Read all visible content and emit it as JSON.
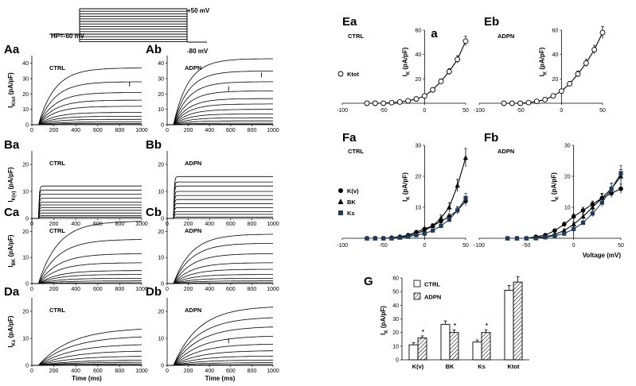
{
  "protocol": {
    "hp_label": "HP=-60 mV",
    "top_label": "+50 mV",
    "bottom_label": "-80 mV"
  },
  "trace_panels": [
    {
      "id": "Aa",
      "tag": "Aa",
      "condition": "CTRL",
      "ylabel": "I_Ktot (pA/pF)",
      "yticks": [
        "0",
        "10",
        "20",
        "30",
        "40"
      ],
      "ymax": 45,
      "amplitudes": [
        0.2,
        0.8,
        1.8,
        3.5,
        5.5,
        8,
        12,
        16,
        21,
        28,
        37
      ],
      "tau": 150,
      "artifacts": [
        [
          890,
          28
        ]
      ]
    },
    {
      "id": "Ab",
      "tag": "Ab",
      "condition": "ADPN",
      "ylabel": "",
      "yticks": [
        "0",
        "10",
        "20",
        "30",
        "40"
      ],
      "ymax": 45,
      "amplitudes": [
        0.3,
        1,
        2.5,
        4.5,
        7,
        10,
        13.5,
        17,
        22,
        28,
        35,
        43
      ],
      "tau": 140,
      "artifacts": [
        [
          580,
          25
        ],
        [
          890,
          34
        ]
      ]
    },
    {
      "id": "Ba",
      "tag": "Ba",
      "condition": "CTRL",
      "ylabel": "I_K(v) (pA/pF)",
      "yticks": [
        "0",
        "10",
        "20"
      ],
      "ymax": 25,
      "amplitudes": [
        0.5,
        1,
        2,
        3,
        4,
        5,
        6,
        7.5,
        9,
        10.5,
        12
      ],
      "tau": 6,
      "artifacts": []
    },
    {
      "id": "Bb",
      "tag": "Bb",
      "condition": "ADPN",
      "ylabel": "",
      "yticks": [
        "0",
        "10",
        "20"
      ],
      "ymax": 25,
      "amplitudes": [
        0.5,
        1.5,
        2.5,
        4,
        5.5,
        7,
        8.5,
        10,
        12,
        13.5,
        15.5
      ],
      "tau": 6,
      "artifacts": []
    },
    {
      "id": "Ca",
      "tag": "Ca",
      "condition": "CTRL",
      "ylabel": "I_BK (pA/pF)",
      "yticks": [
        "0",
        "10",
        "20"
      ],
      "ymax": 25,
      "amplitudes": [
        0.3,
        1,
        2,
        3.5,
        5,
        8,
        11.5,
        17,
        24
      ],
      "tau": 180,
      "artifacts": []
    },
    {
      "id": "Cb",
      "tag": "Cb",
      "condition": "ADPN",
      "ylabel": "",
      "yticks": [
        "0",
        "10",
        "20"
      ],
      "ymax": 25,
      "amplitudes": [
        0.3,
        1,
        2,
        3.5,
        5.5,
        8,
        11.5,
        15.5,
        19
      ],
      "tau": 170,
      "artifacts": []
    },
    {
      "id": "Da",
      "tag": "Da",
      "condition": "CTRL",
      "ylabel": "I_Ks (pA/pF)",
      "yticks": [
        "0",
        "10",
        "20"
      ],
      "ymax": 25,
      "amplitudes": [
        0.2,
        0.6,
        1.2,
        2,
        3.5,
        5.5,
        8,
        11,
        14
      ],
      "tau": 300,
      "artifacts": []
    },
    {
      "id": "Db",
      "tag": "Db",
      "condition": "ADPN",
      "ylabel": "",
      "yticks": [
        "0",
        "10",
        "20"
      ],
      "ymax": 25,
      "amplitudes": [
        0.3,
        1,
        2,
        3.5,
        5.5,
        8,
        11,
        14.5,
        18,
        22
      ],
      "tau": 240,
      "artifacts": [
        [
          580,
          10
        ]
      ]
    }
  ],
  "trace_axes": {
    "xticks": [
      "0",
      "200",
      "400",
      "600",
      "800",
      "1000"
    ],
    "xlabel": "Time (ms)"
  },
  "iv_panels": [
    {
      "id": "Ea",
      "tag": "Ea",
      "condition": "CTRL",
      "sublabel": "a",
      "ylabel": "I_K (pA/pF)",
      "xlim": [
        -100,
        50
      ],
      "ylim": [
        0,
        60
      ],
      "yticks": [
        "20",
        "40",
        "60"
      ],
      "xticks": [
        "-100",
        "-50",
        "0",
        "50"
      ],
      "legend": [
        "Ktot"
      ],
      "series": [
        {
          "name": "Ktot",
          "marker": "circle-open",
          "color": "#000000",
          "x": [
            -70,
            -60,
            -50,
            -40,
            -30,
            -20,
            -10,
            0,
            10,
            20,
            30,
            40,
            50
          ],
          "y": [
            0,
            0,
            0,
            0.5,
            1,
            2,
            3.5,
            6,
            11,
            18,
            26,
            36,
            51
          ],
          "err": [
            0.3,
            0.3,
            0.3,
            0.3,
            0.5,
            0.6,
            0.8,
            1,
            1.5,
            2,
            2.5,
            3,
            4
          ]
        }
      ]
    },
    {
      "id": "Eb",
      "tag": "Eb",
      "condition": "ADPN",
      "sublabel": "",
      "ylabel": "I_K (pA/pF)",
      "xlim": [
        -100,
        50
      ],
      "ylim": [
        0,
        60
      ],
      "yticks": [
        "20",
        "40",
        "60"
      ],
      "xticks": [
        "-100",
        "-50",
        "0",
        "50"
      ],
      "legend": [],
      "series": [
        {
          "name": "Ktot",
          "marker": "circle-open",
          "color": "#000000",
          "x": [
            -70,
            -60,
            -50,
            -40,
            -30,
            -20,
            -10,
            0,
            10,
            20,
            30,
            40,
            50
          ],
          "y": [
            0,
            0,
            0,
            0.5,
            1.5,
            3,
            6,
            10,
            16,
            24,
            33,
            44,
            58
          ],
          "err": [
            0.3,
            0.3,
            0.3,
            0.5,
            0.6,
            0.8,
            1,
            1.5,
            2,
            2.5,
            3,
            3.5,
            5
          ]
        }
      ]
    },
    {
      "id": "Fa",
      "tag": "Fa",
      "condition": "CTRL",
      "sublabel": "",
      "ylabel": "I_K (pA/pF)",
      "xlim": [
        -100,
        50
      ],
      "ylim": [
        0,
        30
      ],
      "yticks": [
        "10",
        "20",
        "30"
      ],
      "xticks": [
        "-100",
        "-50",
        "0",
        "50"
      ],
      "legend": [
        "K(v)",
        "BK",
        "Ks"
      ],
      "series": [
        {
          "name": "K(v)",
          "marker": "circle-filled",
          "color": "#000000",
          "x": [
            -70,
            -60,
            -50,
            -40,
            -30,
            -20,
            -10,
            0,
            10,
            20,
            30,
            40,
            50
          ],
          "y": [
            0,
            0,
            0,
            0.2,
            0.5,
            1,
            2,
            3,
            4,
            5.5,
            7,
            9,
            12
          ],
          "err": [
            0.2,
            0.2,
            0.2,
            0.2,
            0.3,
            0.3,
            0.4,
            0.5,
            0.6,
            0.8,
            1,
            1.2,
            1.5
          ]
        },
        {
          "name": "BK",
          "marker": "triangle",
          "color": "#000000",
          "x": [
            -70,
            -60,
            -50,
            -40,
            -30,
            -20,
            -10,
            0,
            10,
            20,
            30,
            40,
            50
          ],
          "y": [
            0,
            0,
            0,
            0,
            0.3,
            0.8,
            1.5,
            2.5,
            4,
            6.5,
            10,
            17,
            26
          ],
          "err": [
            0.2,
            0.2,
            0.2,
            0.2,
            0.3,
            0.3,
            0.4,
            0.5,
            0.7,
            1,
            1.5,
            2,
            3
          ]
        },
        {
          "name": "Ks",
          "marker": "square",
          "color": "#1f3a5a",
          "x": [
            -70,
            -60,
            -50,
            -40,
            -30,
            -20,
            -10,
            0,
            10,
            20,
            30,
            40,
            50
          ],
          "y": [
            0,
            0,
            0,
            0,
            0.2,
            0.5,
            1,
            1.5,
            2.5,
            4,
            6,
            9,
            13
          ],
          "err": [
            0.2,
            0.2,
            0.2,
            0.2,
            0.2,
            0.3,
            0.3,
            0.4,
            0.5,
            0.6,
            0.8,
            1,
            1.5
          ]
        }
      ]
    },
    {
      "id": "Fb",
      "tag": "Fb",
      "condition": "ADPN",
      "sublabel": "",
      "ylabel": "I_K (pA/pF)",
      "xlim": [
        -100,
        50
      ],
      "ylim": [
        0,
        30
      ],
      "yticks": [
        "10",
        "20",
        "30"
      ],
      "xticks": [
        "-100",
        "-50",
        "0",
        "50"
      ],
      "xlabel": "Voltage (mV)",
      "legend": [],
      "series": [
        {
          "name": "K(v)",
          "marker": "circle-filled",
          "color": "#000000",
          "x": [
            -70,
            -60,
            -50,
            -40,
            -30,
            -20,
            -10,
            0,
            10,
            20,
            30,
            40,
            50
          ],
          "y": [
            0,
            0,
            0,
            0.5,
            1,
            2.5,
            4.5,
            7,
            9,
            11,
            13,
            14.5,
            16
          ],
          "err": [
            0.2,
            0.2,
            0.2,
            0.3,
            0.4,
            0.5,
            0.7,
            0.8,
            1,
            1,
            1.2,
            1.3,
            1.5
          ]
        },
        {
          "name": "BK",
          "marker": "triangle",
          "color": "#000000",
          "x": [
            -70,
            -60,
            -50,
            -40,
            -30,
            -20,
            -10,
            0,
            10,
            20,
            30,
            40,
            50
          ],
          "y": [
            0,
            0,
            0,
            0.2,
            0.5,
            1.2,
            2.5,
            4.5,
            7,
            10,
            13,
            16,
            20
          ],
          "err": [
            0.2,
            0.2,
            0.2,
            0.2,
            0.3,
            0.4,
            0.5,
            0.7,
            0.9,
            1.2,
            1.5,
            1.8,
            2.2
          ]
        },
        {
          "name": "Ks",
          "marker": "square",
          "color": "#1f3a5a",
          "x": [
            -70,
            -60,
            -50,
            -40,
            -30,
            -20,
            -10,
            0,
            10,
            20,
            30,
            40,
            50
          ],
          "y": [
            0,
            0,
            0,
            0,
            0.3,
            0.8,
            1.5,
            3,
            5,
            8,
            11.5,
            16,
            21
          ],
          "err": [
            0.2,
            0.2,
            0.2,
            0.2,
            0.3,
            0.3,
            0.4,
            0.5,
            0.7,
            1,
            1.3,
            1.7,
            2.5
          ]
        }
      ]
    }
  ],
  "chart_data": {
    "type": "bar",
    "title": "G",
    "ylabel": "I_K (pA/pF)",
    "ylim": [
      0,
      60
    ],
    "yticks": [
      "0",
      "10",
      "20",
      "30",
      "40",
      "50",
      "60"
    ],
    "categories": [
      "K(v)",
      "BK",
      "Ks",
      "Ktot"
    ],
    "series": [
      {
        "name": "CTRL",
        "pattern": "open",
        "values": [
          11,
          26,
          13,
          51
        ],
        "err": [
          1.5,
          2.5,
          1.5,
          3.5
        ]
      },
      {
        "name": "ADPN",
        "pattern": "hatched",
        "values": [
          16,
          20,
          20,
          57
        ],
        "err": [
          1.5,
          2,
          2,
          4
        ]
      }
    ],
    "significance": [
      "*",
      "*",
      "*",
      ""
    ]
  }
}
